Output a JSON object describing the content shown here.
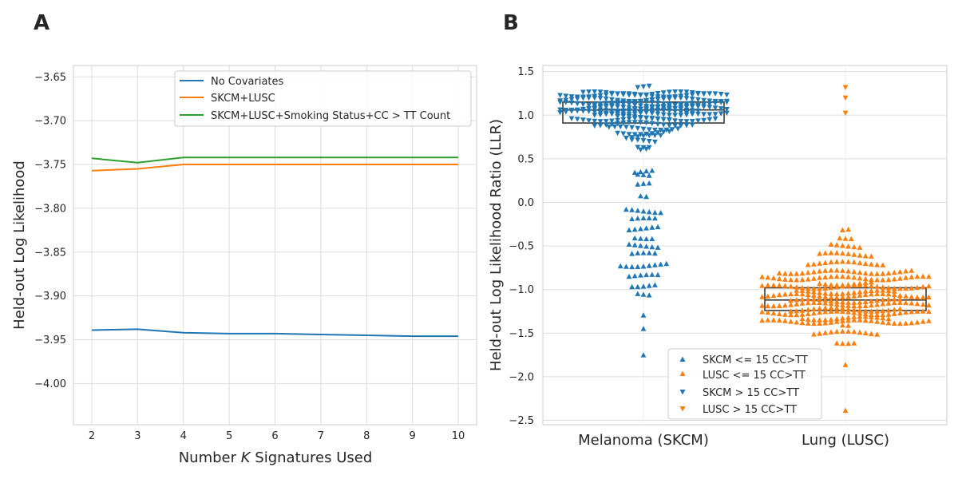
{
  "figure": {
    "panel_a_letter": "A",
    "panel_b_letter": "B"
  },
  "chart_data": [
    {
      "type": "line",
      "panel": "A",
      "xlabel_prefix": "Number ",
      "xlabel_var": "K",
      "xlabel_suffix": " Signatures Used",
      "ylabel": "Held-out Log Likelihood",
      "x": [
        2,
        3,
        4,
        5,
        6,
        7,
        8,
        9,
        10
      ],
      "xlim": [
        1.6,
        10.4
      ],
      "ylim": [
        -4.047,
        -3.637
      ],
      "yticks": [
        -3.65,
        -3.7,
        -3.75,
        -3.8,
        -3.85,
        -3.9,
        -3.95,
        -4.0
      ],
      "ytick_labels": [
        "−3.65",
        "−3.70",
        "−3.75",
        "−3.80",
        "−3.85",
        "−3.90",
        "−3.95",
        "−4.00"
      ],
      "xticks": [
        2,
        3,
        4,
        5,
        6,
        7,
        8,
        9,
        10
      ],
      "xtick_labels": [
        "2",
        "3",
        "4",
        "5",
        "6",
        "7",
        "8",
        "9",
        "10"
      ],
      "grid": true,
      "legend_position": "upper-right",
      "series": [
        {
          "name": "No Covariates",
          "color": "#1f77b4",
          "values": [
            -3.939,
            -3.938,
            -3.942,
            -3.943,
            -3.943,
            -3.944,
            -3.945,
            -3.946,
            -3.946
          ]
        },
        {
          "name": "SKCM+LUSC",
          "color": "#ff7f0e",
          "values": [
            -3.757,
            -3.755,
            -3.75,
            -3.75,
            -3.75,
            -3.75,
            -3.75,
            -3.75,
            -3.75
          ]
        },
        {
          "name": "SKCM+LUSC+Smoking Status+CC$>$TT Count",
          "display_name": "SKCM+LUSC+Smoking Status+CC > TT Count",
          "color": "#2ca02c",
          "values": [
            -3.743,
            -3.748,
            -3.742,
            -3.742,
            -3.742,
            -3.742,
            -3.742,
            -3.742,
            -3.742
          ]
        }
      ]
    },
    {
      "type": "scatter",
      "subtype": "swarm-with-box",
      "panel": "B",
      "ylabel": "Held-out Log Likelihood Ratio (LLR)",
      "categories": [
        "Melanoma (SKCM)",
        "Lung (LUSC)"
      ],
      "ylim": [
        -2.55,
        1.57
      ],
      "yticks": [
        1.5,
        1.0,
        0.5,
        0.0,
        -0.5,
        -1.0,
        -1.5,
        -2.0,
        -2.5
      ],
      "ytick_labels": [
        "1.5",
        "1.0",
        "0.5",
        "0.0",
        "−0.5",
        "−1.0",
        "−1.5",
        "−2.0",
        "−2.5"
      ],
      "grid": true,
      "legend_position": "lower-center",
      "legend": [
        {
          "name": "SKCM <= 15 CC>TT",
          "color": "#1f77b4",
          "marker": "triangle-up"
        },
        {
          "name": "LUSC <= 15 CC>TT",
          "color": "#ff7f0e",
          "marker": "triangle-up"
        },
        {
          "name": "SKCM > 15 CC>TT",
          "color": "#1f77b4",
          "marker": "triangle-down"
        },
        {
          "name": "LUSC > 15 CC>TT",
          "color": "#ff7f0e",
          "marker": "triangle-down"
        }
      ],
      "boxes": [
        {
          "category": "Melanoma (SKCM)",
          "q1": 0.91,
          "median": 1.06,
          "q3": 1.15
        },
        {
          "category": "Lung (LUSC)",
          "q1": -1.24,
          "median": -1.12,
          "q3": -0.98
        }
      ],
      "distributions": [
        {
          "category": "Melanoma (SKCM)",
          "color": "#1f77b4",
          "marker": "triangle-down",
          "bins": [
            [
              1.25,
              22
            ],
            [
              1.2,
              40
            ],
            [
              1.15,
              48
            ],
            [
              1.1,
              50
            ],
            [
              1.05,
              48
            ],
            [
              1.0,
              40
            ],
            [
              0.95,
              26
            ],
            [
              0.9,
              18
            ],
            [
              0.85,
              13
            ],
            [
              0.8,
              10
            ],
            [
              0.75,
              7
            ],
            [
              0.7,
              5
            ],
            [
              0.65,
              3
            ],
            [
              0.6,
              2
            ],
            [
              1.32,
              3
            ]
          ]
        },
        {
          "category": "Melanoma (SKCM)",
          "color": "#1f77b4",
          "marker": "triangle-up",
          "bins": [
            [
              0.35,
              4
            ],
            [
              0.3,
              3
            ],
            [
              0.2,
              3
            ],
            [
              0.08,
              2
            ],
            [
              -0.1,
              7
            ],
            [
              -0.2,
              5
            ],
            [
              -0.3,
              6
            ],
            [
              -0.4,
              4
            ],
            [
              -0.5,
              6
            ],
            [
              -0.6,
              5
            ],
            [
              -0.72,
              9
            ],
            [
              -0.85,
              6
            ],
            [
              -0.95,
              5
            ],
            [
              -1.05,
              3
            ],
            [
              -1.28,
              1
            ],
            [
              -1.47,
              1
            ],
            [
              -1.74,
              1
            ]
          ]
        },
        {
          "category": "Lung (LUSC)",
          "color": "#ff7f0e",
          "marker": "triangle-down",
          "bins": [
            [
              1.32,
              1
            ],
            [
              1.22,
              1
            ],
            [
              1.01,
              1
            ]
          ]
        },
        {
          "category": "Lung (LUSC)",
          "color": "#ff7f0e",
          "marker": "triangle-up",
          "bins": [
            [
              -0.3,
              2
            ],
            [
              -0.4,
              3
            ],
            [
              -0.5,
              6
            ],
            [
              -0.6,
              10
            ],
            [
              -0.7,
              14
            ],
            [
              -0.8,
              24
            ],
            [
              -0.9,
              40
            ],
            [
              -1.0,
              48
            ],
            [
              -1.1,
              50
            ],
            [
              -1.2,
              50
            ],
            [
              -1.3,
              46
            ],
            [
              -1.4,
              32
            ],
            [
              -1.5,
              12
            ],
            [
              -1.6,
              4
            ],
            [
              -1.88,
              1
            ],
            [
              -2.38,
              1
            ]
          ]
        }
      ]
    }
  ]
}
